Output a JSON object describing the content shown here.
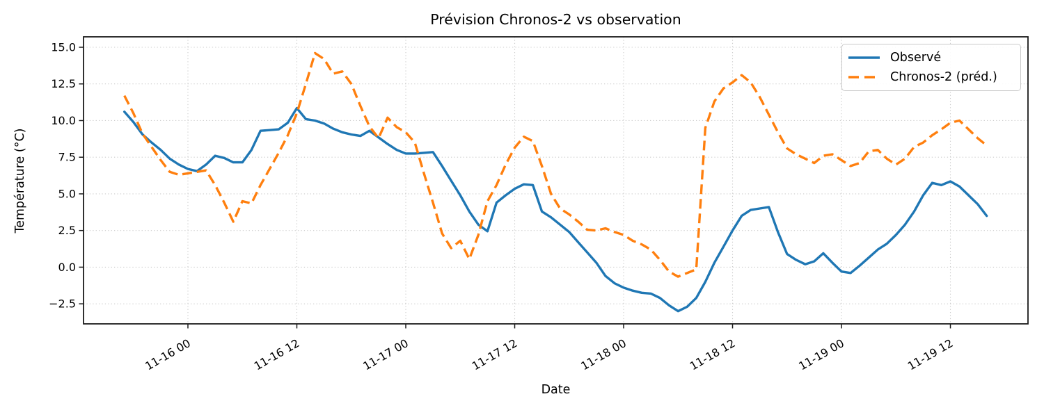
{
  "chart_data": {
    "type": "line",
    "title": "Prévision Chronos-2 vs observation",
    "xlabel": "Date",
    "ylabel": "Température (°C)",
    "x_start": "11-15 17:00",
    "x_step_hours": 1,
    "n_points": 96,
    "x_first_tick_index": 7,
    "x_tick_every_hours": 12,
    "x_tick_labels": [
      "11-16 00",
      "11-16 12",
      "11-17 00",
      "11-17 12",
      "11-18 00",
      "11-18 12",
      "11-19 00",
      "11-19 12"
    ],
    "y_ticks": [
      15.0,
      12.5,
      10.0,
      7.5,
      5.0,
      2.5,
      0.0,
      -2.5
    ],
    "y_tick_labels": [
      "15.0",
      "12.5",
      "10.0",
      "7.5",
      "5.0",
      "2.5",
      "0.0",
      "−2.5"
    ],
    "ylim": [
      -3.9,
      15.7
    ],
    "grid": "dotted",
    "legend_position": "upper right",
    "series": [
      {
        "name": "Observé",
        "color": "#1f77b4",
        "style": "solid",
        "values": [
          10.6,
          9.9,
          9.05,
          8.5,
          8.0,
          7.4,
          7.0,
          6.7,
          6.55,
          7.0,
          7.6,
          7.45,
          7.15,
          7.15,
          8.0,
          9.3,
          9.35,
          9.4,
          9.85,
          10.85,
          10.1,
          10.0,
          9.8,
          9.45,
          9.2,
          9.05,
          8.95,
          9.3,
          8.85,
          8.4,
          8.0,
          7.75,
          7.75,
          7.8,
          7.85,
          6.9,
          5.9,
          4.9,
          3.8,
          2.9,
          2.45,
          4.4,
          4.9,
          5.35,
          5.65,
          5.6,
          3.8,
          3.4,
          2.9,
          2.4,
          1.7,
          1.0,
          0.3,
          -0.6,
          -1.1,
          -1.4,
          -1.6,
          -1.75,
          -1.8,
          -2.1,
          -2.6,
          -3.0,
          -2.7,
          -2.1,
          -1.0,
          0.3,
          1.4,
          2.5,
          3.5,
          3.9,
          4.0,
          4.1,
          2.4,
          0.9,
          0.5,
          0.2,
          0.4,
          0.95,
          0.3,
          -0.3,
          -0.4,
          0.1,
          0.65,
          1.2,
          1.6,
          2.2,
          2.9,
          3.8,
          4.9,
          5.75,
          5.6,
          5.85,
          5.5,
          4.9,
          4.3,
          3.5
        ]
      },
      {
        "name": "Chronos-2 (préd.)",
        "color": "#ff7f0e",
        "style": "dashed",
        "values": [
          11.7,
          10.5,
          9.1,
          8.2,
          7.3,
          6.5,
          6.3,
          6.4,
          6.5,
          6.6,
          5.6,
          4.4,
          3.1,
          4.5,
          4.35,
          5.6,
          6.7,
          7.8,
          9.0,
          10.5,
          12.5,
          14.6,
          14.2,
          13.2,
          13.35,
          12.5,
          11.0,
          9.6,
          8.8,
          10.2,
          9.55,
          9.2,
          8.5,
          6.4,
          4.4,
          2.3,
          1.3,
          1.8,
          0.55,
          2.2,
          4.5,
          5.6,
          7.0,
          8.15,
          8.9,
          8.6,
          6.9,
          5.0,
          4.0,
          3.6,
          3.1,
          2.55,
          2.5,
          2.65,
          2.4,
          2.2,
          1.8,
          1.55,
          1.2,
          0.5,
          -0.3,
          -0.65,
          -0.4,
          -0.15,
          9.5,
          11.3,
          12.2,
          12.6,
          13.1,
          12.6,
          11.6,
          10.4,
          9.2,
          8.1,
          7.7,
          7.4,
          7.1,
          7.6,
          7.7,
          7.3,
          6.9,
          7.1,
          7.9,
          8.0,
          7.4,
          7.0,
          7.4,
          8.2,
          8.5,
          9.0,
          9.4,
          9.85,
          10.0,
          9.4,
          8.8,
          8.3
        ]
      }
    ]
  },
  "colors": {
    "observed": "#1f77b4",
    "predicted": "#ff7f0e",
    "grid": "#cccccc",
    "spine": "#1a1a1a"
  }
}
